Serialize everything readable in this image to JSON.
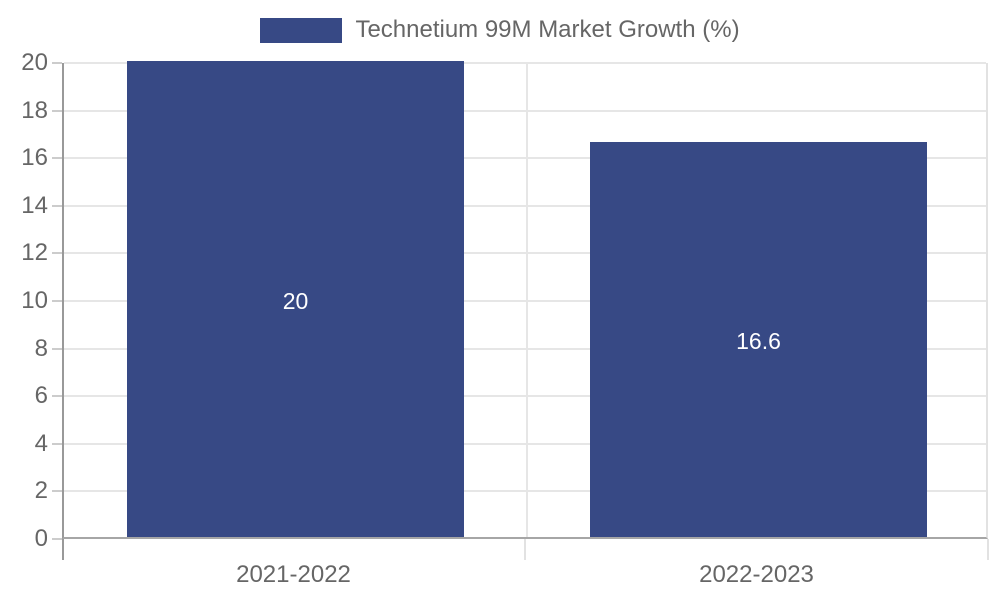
{
  "chart_data": {
    "type": "bar",
    "title": "Technetium 99M Market Growth (%)",
    "categories": [
      "2021-2022",
      "2022-2023"
    ],
    "values": [
      20,
      16.6
    ],
    "value_labels": [
      "20",
      "16.6"
    ],
    "ylim": [
      0,
      20
    ],
    "yticks": [
      0,
      2,
      4,
      6,
      8,
      10,
      12,
      14,
      16,
      18,
      20
    ],
    "ytick_labels": [
      "0",
      "2",
      "4",
      "6",
      "8",
      "10",
      "12",
      "14",
      "16",
      "18",
      "20"
    ],
    "grid": true,
    "legend": {
      "position": "top-center",
      "label": "Technetium 99M Market Growth (%)"
    },
    "colors": {
      "bar": "#374985",
      "bar_label_text": "#ffffff",
      "gridline": "#e6e6e6",
      "y_axis_line": "#999999",
      "x_axis_line": "#a6a6a6",
      "tick_text": "#666666",
      "background": "#ffffff"
    }
  }
}
